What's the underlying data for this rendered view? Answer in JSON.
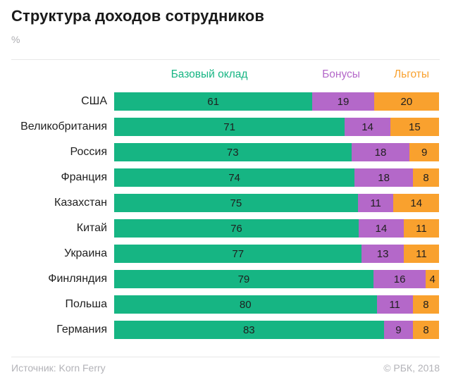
{
  "title": "Структура доходов сотрудников",
  "subtitle": "%",
  "footer": {
    "source": "Источник: Korn Ferry",
    "copyright": "© РБК, 2018"
  },
  "chart_data": {
    "type": "bar",
    "orientation": "horizontal",
    "stacked": true,
    "unit": "%",
    "xlim": [
      0,
      100
    ],
    "grid": false,
    "legend_position": "top",
    "categories": [
      "США",
      "Великобритания",
      "Россия",
      "Франция",
      "Казахстан",
      "Китай",
      "Украина",
      "Финляндия",
      "Польша",
      "Германия"
    ],
    "series": [
      {
        "name": "Базовый оклад",
        "color": "#16b583",
        "values": [
          61,
          71,
          73,
          74,
          75,
          76,
          77,
          79,
          80,
          83
        ]
      },
      {
        "name": "Бонусы",
        "color": "#b468c9",
        "values": [
          19,
          14,
          18,
          18,
          11,
          14,
          13,
          16,
          11,
          9
        ]
      },
      {
        "name": "Льготы",
        "color": "#f9a12e",
        "values": [
          20,
          15,
          9,
          8,
          14,
          11,
          11,
          4,
          8,
          8
        ]
      }
    ],
    "title": "Структура доходов сотрудников",
    "xlabel": "",
    "ylabel": ""
  }
}
